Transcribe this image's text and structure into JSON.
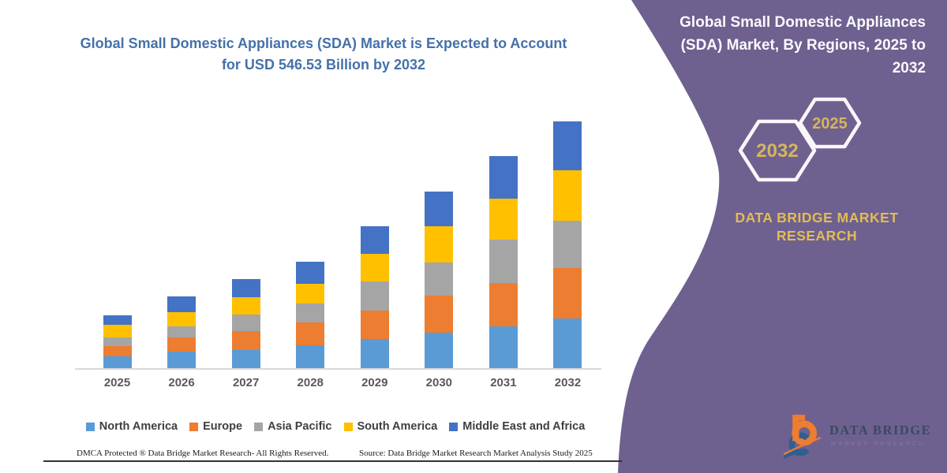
{
  "chart": {
    "title": "Global Small Domestic Appliances (SDA) Market is Expected to Account for USD 546.53 Billion by 2032",
    "title_color": "#4571A9"
  },
  "chart_data": {
    "type": "bar",
    "stacked": true,
    "title": "Global Small Domestic Appliances (SDA) Market is Expected to Account for USD 546.53 Billion by 2032",
    "unit": "USD Billion",
    "categories": [
      "2025",
      "2026",
      "2027",
      "2028",
      "2029",
      "2030",
      "2031",
      "2032"
    ],
    "series": [
      {
        "name": "North America",
        "color": "#5B9BD5",
        "values": [
          26.2,
          36.2,
          39.7,
          51.2,
          64.1,
          78.7,
          93.3,
          110.8
        ]
      },
      {
        "name": "Europe",
        "color": "#ED7D31",
        "values": [
          23.3,
          32.7,
          41.9,
          50.7,
          64.1,
          81.6,
          96.1,
          110.6
        ]
      },
      {
        "name": "Asia Pacific",
        "color": "#A5A5A5",
        "values": [
          18.7,
          24.5,
          37.9,
          40.7,
          64.1,
          72.9,
          96.1,
          104.9
        ]
      },
      {
        "name": "South America",
        "color": "#FFC000",
        "values": [
          28.0,
          30.2,
          37.9,
          44.9,
          61.2,
          80.4,
          90.2,
          111.9
        ]
      },
      {
        "name": "Middle East and Africa",
        "color": "#4472C4",
        "values": [
          21.7,
          35.0,
          40.7,
          48.4,
          60.1,
          76.9,
          93.3,
          108.4
        ]
      }
    ],
    "totals_estimated": [
      117.9,
      158.6,
      198.1,
      235.9,
      313.6,
      390.5,
      469.1,
      546.53
    ],
    "value_axis_visible": false,
    "grid": false,
    "legend_position": "bottom",
    "xlabel": "",
    "ylabel": ""
  },
  "footer": {
    "dmca": "DMCA Protected ® Data Bridge Market Research-  All Rights Reserved.",
    "source": "Source: Data Bridge Market Research  Market Analysis Study 2025"
  },
  "panel": {
    "background_color": "#6E6190",
    "title": "Global Small Domestic Appliances (SDA) Market, By Regions, 2025 to 2032",
    "hexagons": [
      {
        "label": "2032"
      },
      {
        "label": "2025"
      }
    ],
    "hex_label_color": "#D6B45E",
    "brand": "DATA BRIDGE MARKET RESEARCH",
    "brand_color": "#E4BC52",
    "logo": {
      "name": "DATA BRIDGE",
      "tagline": "MARKET RESEARCH",
      "orange": "#ED7D31",
      "blue": "#2F5F90"
    }
  }
}
